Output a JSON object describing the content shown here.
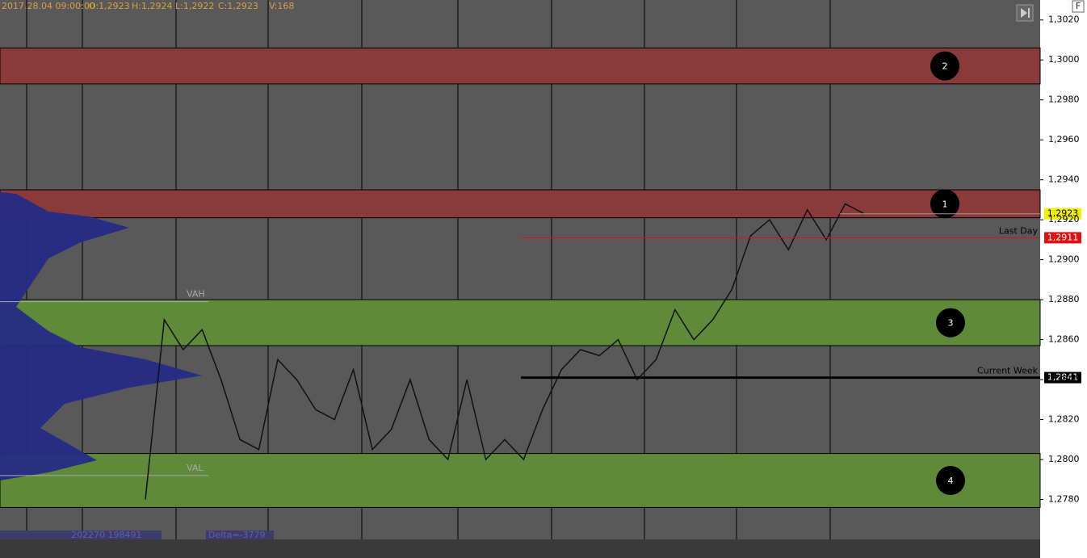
{
  "chart_data": {
    "type": "price_zones",
    "header": {
      "time": "2017.28.04 09:00:00",
      "open": "O:1,2923",
      "high": "H:1,2924",
      "low": "L:1,2922",
      "close": "C:1,2923",
      "volume": "V:168"
    },
    "button": "F",
    "ylim": [
      1.276,
      1.303
    ],
    "yticks": [
      {
        "value": 1.302,
        "label": "1,3020"
      },
      {
        "value": 1.3,
        "label": "1,3000"
      },
      {
        "value": 1.298,
        "label": "1,2980"
      },
      {
        "value": 1.296,
        "label": "1,2960"
      },
      {
        "value": 1.294,
        "label": "1,2940"
      },
      {
        "value": 1.292,
        "label": "1,2920"
      },
      {
        "value": 1.29,
        "label": "1,2900"
      },
      {
        "value": 1.288,
        "label": "1,2880"
      },
      {
        "value": 1.286,
        "label": "1,2860"
      },
      {
        "value": 1.284,
        "label": "1,2840"
      },
      {
        "value": 1.282,
        "label": "1,2820"
      },
      {
        "value": 1.28,
        "label": "1,2800"
      },
      {
        "value": 1.278,
        "label": "1,2780"
      }
    ],
    "zones": [
      {
        "label": "2",
        "from": 1.2988,
        "to": 1.3006,
        "color": "#8b3a3a"
      },
      {
        "label": "1",
        "from": 1.2921,
        "to": 1.2935,
        "color": "#8b3a3a"
      },
      {
        "label": "3",
        "from": 1.2857,
        "to": 1.288,
        "color": "#5f8a3a"
      },
      {
        "label": "4",
        "from": 1.2776,
        "to": 1.2803,
        "color": "#5f8a3a"
      }
    ],
    "levels": [
      {
        "name": "Last Day",
        "value": 1.2911,
        "label": "1,2911",
        "color": "#e01010"
      },
      {
        "name": "Current Week",
        "value": 1.2841,
        "label": "1,2841",
        "color": "#000000"
      }
    ],
    "last_price": {
      "value": 1.2923,
      "label": "1,2923",
      "color": "#f0f000"
    },
    "value_area": [
      {
        "name": "VAH",
        "value": 1.2879
      },
      {
        "name": "VAL",
        "value": 1.2792
      }
    ],
    "footer": {
      "volumes": "202270 198491",
      "delta": "Delta=-3779"
    },
    "price": [
      1.278,
      1.287,
      1.2855,
      1.2865,
      1.284,
      1.281,
      1.2805,
      1.285,
      1.284,
      1.2825,
      1.282,
      1.2845,
      1.2805,
      1.2815,
      1.284,
      1.281,
      1.28,
      1.284,
      1.28,
      1.281,
      1.28,
      1.2825,
      1.2845,
      1.2855,
      1.2852,
      1.286,
      1.284,
      1.285,
      1.2875,
      1.286,
      1.287,
      1.2885,
      1.2912,
      1.292,
      1.2905,
      1.2925,
      1.291,
      1.2928,
      1.2923
    ]
  }
}
